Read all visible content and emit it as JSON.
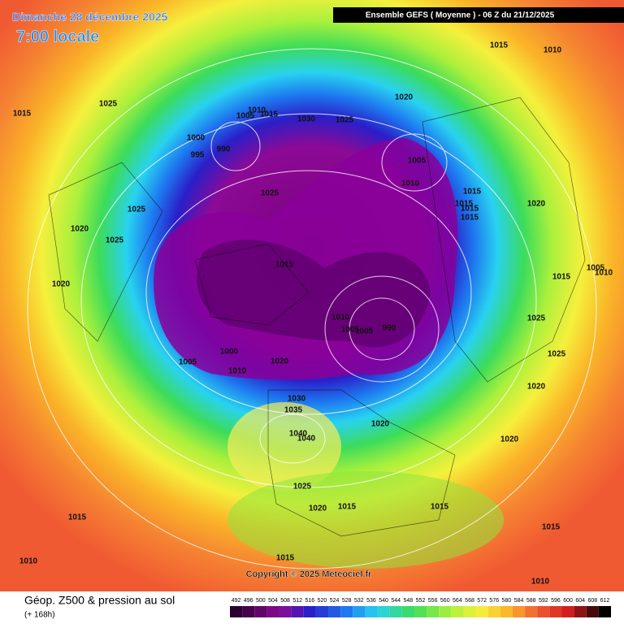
{
  "header": {
    "date": "Dimanche 28 décembre 2025",
    "time": "7:00 locale",
    "model": "Ensemble GEFS  ( Moyenne )  -  06 Z du 21/12/2025"
  },
  "map": {
    "isobar_labels": [
      "1015",
      "1025",
      "1010",
      "1005",
      "1015",
      "1030",
      "1025",
      "1020",
      "1015",
      "1010",
      "1000",
      "995",
      "990",
      "1005",
      "1010",
      "1025",
      "1015",
      "1015",
      "1015",
      "1015",
      "1020",
      "1025",
      "1020",
      "1025",
      "1015",
      "1005",
      "1010",
      "1015",
      "1020",
      "1010",
      "990",
      "1005",
      "1005",
      "1025",
      "1025",
      "1005",
      "1000",
      "1020",
      "1010",
      "1020",
      "1030",
      "1035",
      "1040",
      "1040",
      "1020",
      "1020",
      "1025",
      "1020",
      "1015",
      "1015",
      "1015",
      "1015",
      "1010",
      "1015",
      "1010"
    ],
    "copyright": "Copyright © 2025 Meteociel.fr"
  },
  "footer": {
    "title": "Géop. Z500 & pression au sol",
    "subtitle": "(+ 168h)",
    "scale": [
      492,
      496,
      500,
      504,
      508,
      512,
      516,
      520,
      524,
      528,
      532,
      536,
      540,
      544,
      548,
      552,
      556,
      560,
      564,
      568,
      572,
      576,
      580,
      584,
      588,
      592,
      596,
      600,
      604,
      608,
      612
    ]
  }
}
